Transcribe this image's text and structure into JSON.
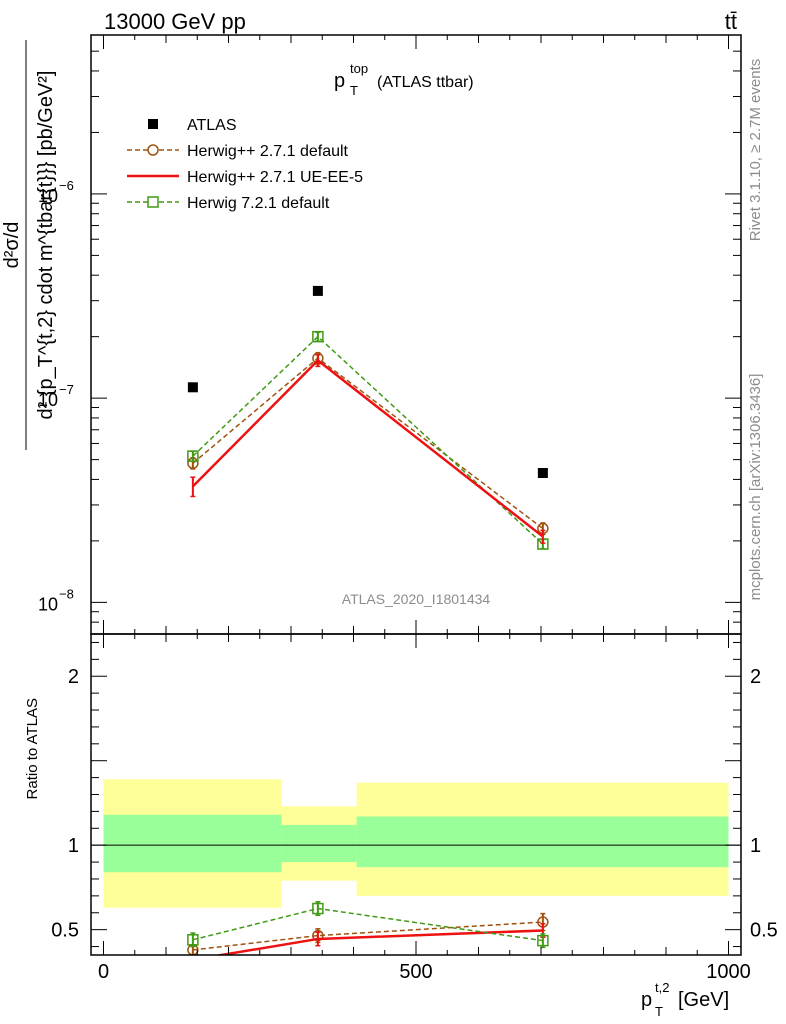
{
  "header": {
    "energy_label": "13000 GeV pp",
    "process_label": "tt̄"
  },
  "side_labels": {
    "rivet": "Rivet 3.1.10, ≥ 2.7M events",
    "mcplots": "mcplots.cern.ch [arXiv:1306.3436]"
  },
  "watermark": "ATLAS_2020_I1801434",
  "chart_data": [
    {
      "type": "line",
      "panel": "main",
      "title_main": "p",
      "title_sup": "top",
      "title_sub": "T",
      "title_suffix": "(ATLAS ttbar)",
      "ylabel_top": "d²σ/d",
      "ylabel_bottom": "d² {p_T^{t,2} cdot m^{tbar{t}}} [pb/GeV²]",
      "yscale": "log",
      "ylim": [
        7e-09,
        6e-06
      ],
      "xlim": [
        -20,
        1020
      ],
      "ytick_labels": [
        {
          "value": 1e-08,
          "base": "10",
          "exp": "−8"
        },
        {
          "value": 1e-07,
          "base": "10",
          "exp": "−7"
        },
        {
          "value": 1e-06,
          "base": "10",
          "exp": "−6"
        }
      ],
      "legend_position": "top-left",
      "series": [
        {
          "name": "ATLAS",
          "color": "#000000",
          "marker": "filled-square",
          "line": "none",
          "x": [
            143,
            343,
            703
          ],
          "y": [
            1.13e-07,
            3.35e-07,
            4.3e-08
          ]
        },
        {
          "name": "Herwig++ 2.7.1 default",
          "color": "#a0520f",
          "marker": "open-circle",
          "line": "dashed",
          "x": [
            143,
            343,
            703
          ],
          "y": [
            4.8e-08,
            1.57e-07,
            2.3e-08
          ],
          "err": [
            3e-09,
            1e-08,
            1.5e-09
          ]
        },
        {
          "name": "Herwig++ 2.7.1 UE-EE-5",
          "color": "#ee1111",
          "marker": "none",
          "line": "solid",
          "x": [
            143,
            343,
            703
          ],
          "y": [
            3.7e-08,
            1.53e-07,
            2.1e-08
          ],
          "err": [
            4e-09,
            1e-08,
            1.5e-09
          ]
        },
        {
          "name": "Herwig 7.2.1 default",
          "color": "#3f9a14",
          "marker": "open-square",
          "line": "dashed",
          "x": [
            143,
            343,
            703
          ],
          "y": [
            5.2e-08,
            2e-07,
            1.93e-08
          ],
          "err": [
            3e-09,
            1e-08,
            1e-09
          ]
        }
      ]
    },
    {
      "type": "line",
      "panel": "ratio",
      "ylabel": "Ratio to ATLAS",
      "xlabel_main": "p",
      "xlabel_sup": "t,2",
      "xlabel_sub": "T",
      "xlabel_suffix": "[GeV]",
      "ylim": [
        0.35,
        2.25
      ],
      "xlim": [
        -20,
        1020
      ],
      "xticks": [
        0,
        500,
        1000
      ],
      "yticks": [
        0.5,
        1,
        2
      ],
      "ytick_labels": [
        "0.5",
        "1",
        "2"
      ],
      "xtick_labels": [
        "0",
        "500",
        "1000"
      ],
      "bands": [
        {
          "x0": 0,
          "x1": 285,
          "inner": [
            0.84,
            1.18
          ],
          "outer": [
            0.63,
            1.39
          ]
        },
        {
          "x0": 285,
          "x1": 405,
          "inner": [
            0.9,
            1.12
          ],
          "outer": [
            0.79,
            1.23
          ]
        },
        {
          "x0": 405,
          "x1": 1000,
          "inner": [
            0.87,
            1.17
          ],
          "outer": [
            0.7,
            1.37
          ]
        }
      ],
      "band_colors": {
        "inner": "#99ff99",
        "outer": "#ffff99"
      },
      "series": [
        {
          "name": "Herwig++ 2.7.1 default",
          "color": "#a0520f",
          "marker": "open-circle",
          "line": "dashed",
          "x": [
            143,
            343,
            703
          ],
          "y": [
            0.38,
            0.465,
            0.545
          ],
          "err": [
            0.03,
            0.04,
            0.05
          ]
        },
        {
          "name": "Herwig++ 2.7.1 UE-EE-5",
          "color": "#ee1111",
          "marker": "none",
          "line": "solid",
          "x": [
            75,
            343,
            703
          ],
          "y": [
            0.28,
            0.445,
            0.495
          ],
          "err": [
            0,
            0.04,
            0.04
          ]
        },
        {
          "name": "Herwig 7.2.1 default",
          "color": "#3f9a14",
          "marker": "open-square",
          "line": "dashed",
          "x": [
            143,
            343,
            703
          ],
          "y": [
            0.44,
            0.625,
            0.435
          ],
          "err": [
            0.04,
            0.04,
            0.04
          ]
        }
      ]
    }
  ]
}
